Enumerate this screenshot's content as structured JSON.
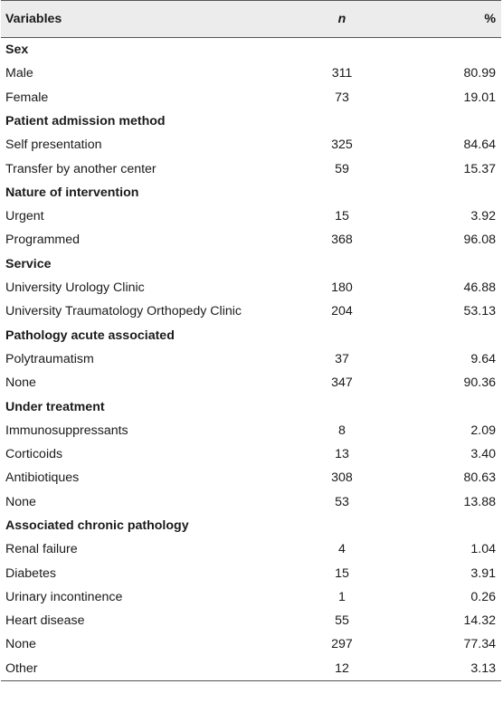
{
  "header": {
    "variables": "Variables",
    "n": "n",
    "pct": "%"
  },
  "sections": [
    {
      "title": "Sex",
      "rows": [
        {
          "label": "Male",
          "n": "311",
          "pct": "80.99"
        },
        {
          "label": "Female",
          "n": "73",
          "pct": "19.01"
        }
      ]
    },
    {
      "title": "Patient admission method",
      "rows": [
        {
          "label": "Self presentation",
          "n": "325",
          "pct": "84.64"
        },
        {
          "label": "Transfer by another center",
          "n": "59",
          "pct": "15.37"
        }
      ]
    },
    {
      "title": "Nature of intervention",
      "rows": [
        {
          "label": "Urgent",
          "n": "15",
          "pct": "3.92"
        },
        {
          "label": "Programmed",
          "n": "368",
          "pct": "96.08"
        }
      ]
    },
    {
      "title": "Service",
      "rows": [
        {
          "label": "University Urology Clinic",
          "n": "180",
          "pct": "46.88"
        },
        {
          "label": "University Traumatology Orthopedy Clinic",
          "n": "204",
          "pct": "53.13"
        }
      ]
    },
    {
      "title": "Pathology acute associated",
      "rows": [
        {
          "label": "Polytraumatism",
          "n": "37",
          "pct": "9.64"
        },
        {
          "label": "None",
          "n": "347",
          "pct": "90.36"
        }
      ]
    },
    {
      "title": "Under treatment",
      "rows": [
        {
          "label": "Immunosuppressants",
          "n": "8",
          "pct": "2.09"
        },
        {
          "label": "Corticoids",
          "n": "13",
          "pct": "3.40"
        },
        {
          "label": "Antibiotiques",
          "n": "308",
          "pct": "80.63"
        },
        {
          "label": "None",
          "n": "53",
          "pct": "13.88"
        }
      ]
    },
    {
      "title": "Associated chronic pathology",
      "rows": [
        {
          "label": "Renal failure",
          "n": "4",
          "pct": "1.04"
        },
        {
          "label": "Diabetes",
          "n": "15",
          "pct": "3.91"
        },
        {
          "label": "Urinary incontinence",
          "n": "1",
          "pct": "0.26"
        },
        {
          "label": "Heart disease",
          "n": "55",
          "pct": "14.32"
        },
        {
          "label": "None",
          "n": "297",
          "pct": "77.34"
        },
        {
          "label": "Other",
          "n": "12",
          "pct": "3.13"
        }
      ]
    }
  ]
}
